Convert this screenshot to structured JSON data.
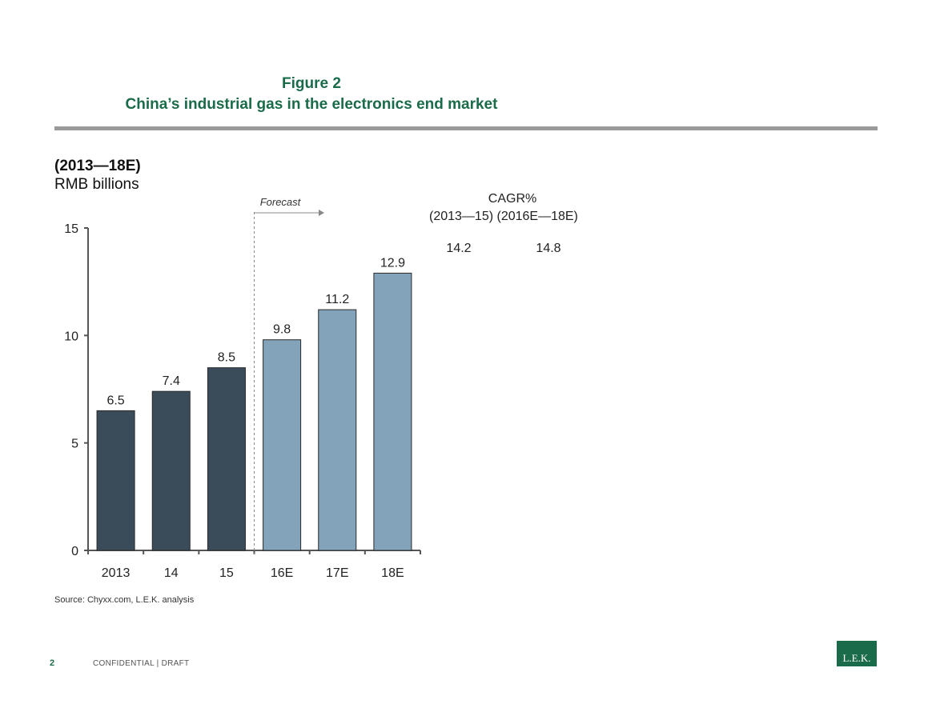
{
  "header": {
    "figure_number": "Figure 2",
    "title": "China’s industrial gas in the electronics end market"
  },
  "chart_data": {
    "type": "bar",
    "period_label": "(2013—18E)",
    "units": "RMB billions",
    "categories": [
      "2013",
      "14",
      "15",
      "16E",
      "17E",
      "18E"
    ],
    "values": [
      6.5,
      7.4,
      8.5,
      9.8,
      11.2,
      12.9
    ],
    "value_labels": [
      "6.5",
      "7.4",
      "8.5",
      "9.8",
      "11.2",
      "12.9"
    ],
    "forecast": [
      false,
      false,
      false,
      true,
      true,
      true
    ],
    "forecast_label": "Forecast",
    "ylim": [
      0,
      15
    ],
    "yticks": [
      0,
      5,
      10,
      15
    ],
    "ytick_labels": [
      "0",
      "5",
      "10",
      "15"
    ],
    "colors": {
      "actual": "#3a4b5a",
      "forecast": "#82a3ba",
      "axis": "#555555",
      "divider": "#888888"
    },
    "cagr": {
      "heading": "CAGR%",
      "periods": "(2013—15) (2016E—18E)",
      "values": [
        "14.2",
        "14.8"
      ]
    },
    "grid": false
  },
  "source": "Source: Chyxx.com, L.E.K. analysis",
  "footer": {
    "page_number": "2",
    "confidentiality": "CONFIDENTIAL | DRAFT"
  },
  "logo": {
    "text": "L.E.K."
  }
}
